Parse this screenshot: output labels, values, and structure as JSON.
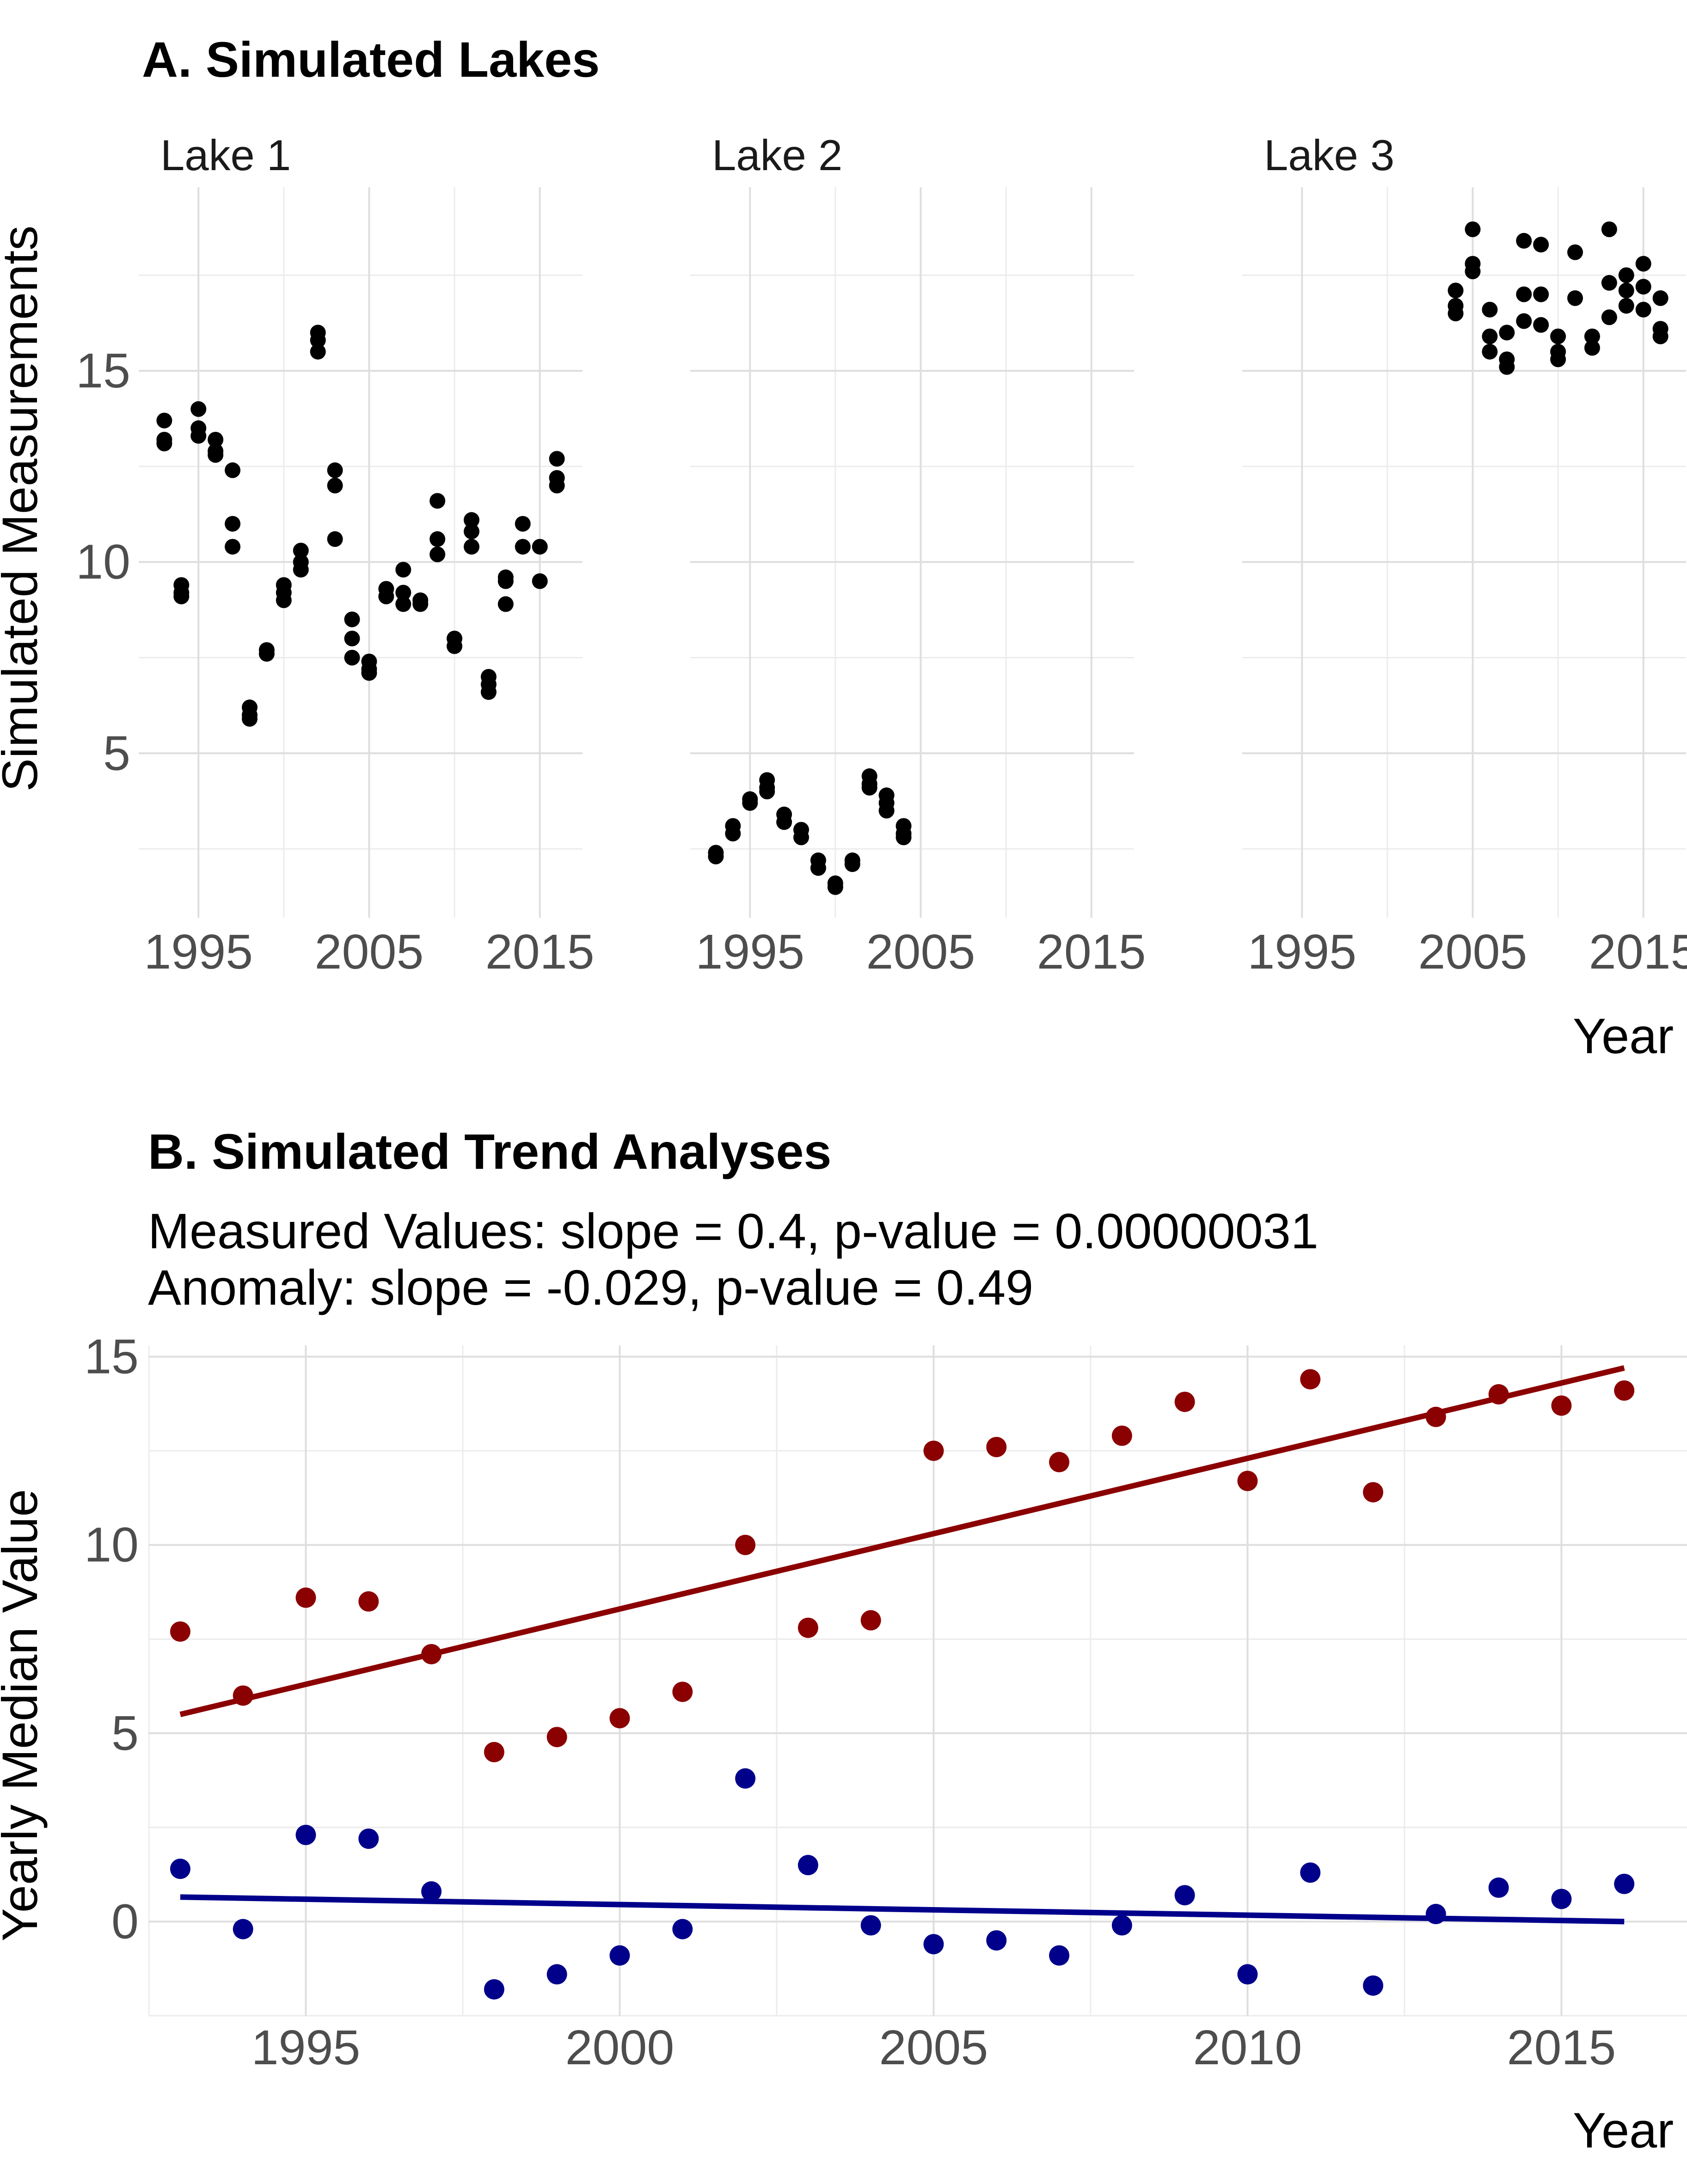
{
  "chart_data": [
    {
      "panel": "A",
      "type": "scatter",
      "title": "A. Simulated Lakes",
      "ylabel": "Simulated Measurements",
      "xlabel": "Year",
      "x_ticks": [
        1995,
        2005,
        2015
      ],
      "y_ticks": [
        5,
        10,
        15
      ],
      "xlim": [
        1991.5,
        2017.5
      ],
      "ylim": [
        0.7,
        19.8
      ],
      "grid": true,
      "facets": [
        {
          "name": "Lake 1",
          "points": [
            [
              1993,
              13.7
            ],
            [
              1993,
              13.2
            ],
            [
              1993,
              13.1
            ],
            [
              1994,
              9.4
            ],
            [
              1994,
              9.2
            ],
            [
              1994,
              9.1
            ],
            [
              1995,
              14.0
            ],
            [
              1995,
              13.5
            ],
            [
              1995,
              13.3
            ],
            [
              1996,
              13.2
            ],
            [
              1996,
              12.9
            ],
            [
              1996,
              12.8
            ],
            [
              1997,
              12.4
            ],
            [
              1997,
              11.0
            ],
            [
              1997,
              10.4
            ],
            [
              1998,
              6.2
            ],
            [
              1998,
              6.0
            ],
            [
              1998,
              5.9
            ],
            [
              1999,
              7.7
            ],
            [
              1999,
              7.6
            ],
            [
              2000,
              9.4
            ],
            [
              2000,
              9.2
            ],
            [
              2000,
              9.0
            ],
            [
              2001,
              10.3
            ],
            [
              2001,
              10.0
            ],
            [
              2001,
              9.8
            ],
            [
              2002,
              16.0
            ],
            [
              2002,
              15.8
            ],
            [
              2002,
              15.5
            ],
            [
              2003,
              12.4
            ],
            [
              2003,
              12.0
            ],
            [
              2003,
              10.6
            ],
            [
              2004,
              8.5
            ],
            [
              2004,
              8.0
            ],
            [
              2004,
              7.5
            ],
            [
              2005,
              7.4
            ],
            [
              2005,
              7.2
            ],
            [
              2005,
              7.1
            ],
            [
              2006,
              9.3
            ],
            [
              2006,
              9.1
            ],
            [
              2007,
              9.8
            ],
            [
              2007,
              9.2
            ],
            [
              2007,
              8.9
            ],
            [
              2008,
              9.0
            ],
            [
              2008,
              8.9
            ],
            [
              2009,
              11.6
            ],
            [
              2009,
              10.6
            ],
            [
              2009,
              10.2
            ],
            [
              2010,
              8.0
            ],
            [
              2010,
              7.8
            ],
            [
              2011,
              11.1
            ],
            [
              2011,
              10.8
            ],
            [
              2011,
              10.4
            ],
            [
              2012,
              7.0
            ],
            [
              2012,
              6.8
            ],
            [
              2012,
              6.6
            ],
            [
              2013,
              9.6
            ],
            [
              2013,
              9.5
            ],
            [
              2013,
              8.9
            ],
            [
              2014,
              11.0
            ],
            [
              2014,
              10.4
            ],
            [
              2015,
              10.4
            ],
            [
              2015,
              9.5
            ],
            [
              2016,
              12.7
            ],
            [
              2016,
              12.2
            ],
            [
              2016,
              12.0
            ]
          ]
        },
        {
          "name": "Lake 2",
          "points": [
            [
              1993,
              2.4
            ],
            [
              1993,
              2.3
            ],
            [
              1994,
              3.1
            ],
            [
              1994,
              2.9
            ],
            [
              1995,
              3.8
            ],
            [
              1995,
              3.7
            ],
            [
              1996,
              4.3
            ],
            [
              1996,
              4.1
            ],
            [
              1996,
              4.0
            ],
            [
              1997,
              3.4
            ],
            [
              1997,
              3.2
            ],
            [
              1998,
              3.0
            ],
            [
              1998,
              2.8
            ],
            [
              1999,
              2.2
            ],
            [
              1999,
              2.0
            ],
            [
              2000,
              1.6
            ],
            [
              2000,
              1.5
            ],
            [
              2001,
              2.2
            ],
            [
              2001,
              2.1
            ],
            [
              2002,
              4.4
            ],
            [
              2002,
              4.2
            ],
            [
              2002,
              4.1
            ],
            [
              2003,
              3.9
            ],
            [
              2003,
              3.7
            ],
            [
              2003,
              3.5
            ],
            [
              2004,
              3.1
            ],
            [
              2004,
              2.9
            ],
            [
              2004,
              2.8
            ]
          ]
        },
        {
          "name": "Lake 3",
          "points": [
            [
              2004,
              17.1
            ],
            [
              2004,
              16.7
            ],
            [
              2004,
              16.5
            ],
            [
              2005,
              18.7
            ],
            [
              2005,
              17.8
            ],
            [
              2005,
              17.6
            ],
            [
              2006,
              16.6
            ],
            [
              2006,
              15.9
            ],
            [
              2006,
              15.5
            ],
            [
              2007,
              16.0
            ],
            [
              2007,
              15.3
            ],
            [
              2007,
              15.1
            ],
            [
              2008,
              18.4
            ],
            [
              2008,
              17.0
            ],
            [
              2008,
              16.3
            ],
            [
              2009,
              18.3
            ],
            [
              2009,
              17.0
            ],
            [
              2009,
              16.2
            ],
            [
              2010,
              15.9
            ],
            [
              2010,
              15.5
            ],
            [
              2010,
              15.3
            ],
            [
              2011,
              18.1
            ],
            [
              2011,
              16.9
            ],
            [
              2012,
              15.9
            ],
            [
              2012,
              15.6
            ],
            [
              2013,
              18.7
            ],
            [
              2013,
              17.3
            ],
            [
              2013,
              16.4
            ],
            [
              2014,
              17.5
            ],
            [
              2014,
              17.1
            ],
            [
              2014,
              16.7
            ],
            [
              2015,
              17.8
            ],
            [
              2015,
              17.2
            ],
            [
              2015,
              16.6
            ],
            [
              2016,
              16.9
            ],
            [
              2016,
              16.1
            ],
            [
              2016,
              15.9
            ]
          ]
        }
      ]
    },
    {
      "panel": "B",
      "type": "scatter",
      "title": "B. Simulated Trend Analyses",
      "subtitle_lines": [
        "Measured Values: slope = 0.4, p-value = 0.00000031",
        "Anomaly: slope = -0.029, p-value = 0.49"
      ],
      "ylabel": "Yearly Median Value",
      "xlabel": "Year",
      "x_ticks": [
        1995,
        2000,
        2005,
        2010,
        2015
      ],
      "y_ticks": [
        0,
        5,
        10,
        15
      ],
      "xlim": [
        1992.5,
        2017
      ],
      "ylim": [
        -2.5,
        15.3
      ],
      "grid": true,
      "series": [
        {
          "color": "#8b0000",
          "x": [
            1993,
            1994,
            1995,
            1996,
            1997,
            1998,
            1999,
            2000,
            2001,
            2002,
            2003,
            2004,
            2005,
            2006,
            2007,
            2008,
            2009,
            2010,
            2011,
            2012,
            2013,
            2014,
            2015,
            2016
          ],
          "values": [
            7.7,
            6.0,
            8.6,
            8.5,
            7.1,
            4.5,
            4.9,
            5.4,
            6.1,
            10.0,
            7.8,
            8.0,
            12.5,
            12.6,
            12.2,
            12.9,
            13.8,
            11.7,
            14.4,
            11.4,
            13.4,
            14.0,
            13.7,
            14.1
          ],
          "trend": {
            "x": [
              1993,
              2016
            ],
            "y": [
              5.5,
              14.7
            ]
          }
        },
        {
          "color": "#00008b",
          "x": [
            1993,
            1994,
            1995,
            1996,
            1997,
            1998,
            1999,
            2000,
            2001,
            2002,
            2003,
            2004,
            2005,
            2006,
            2007,
            2008,
            2009,
            2010,
            2011,
            2012,
            2013,
            2014,
            2015,
            2016
          ],
          "values": [
            1.4,
            -0.2,
            2.3,
            2.2,
            0.8,
            -1.8,
            -1.4,
            -0.9,
            -0.2,
            3.8,
            1.5,
            -0.1,
            -0.6,
            -0.5,
            -0.9,
            -0.1,
            0.7,
            -1.4,
            1.3,
            -1.7,
            0.2,
            0.9,
            0.6,
            1.0
          ],
          "trend": {
            "x": [
              1993,
              2016
            ],
            "y": [
              0.65,
              0.0
            ]
          }
        }
      ]
    }
  ]
}
